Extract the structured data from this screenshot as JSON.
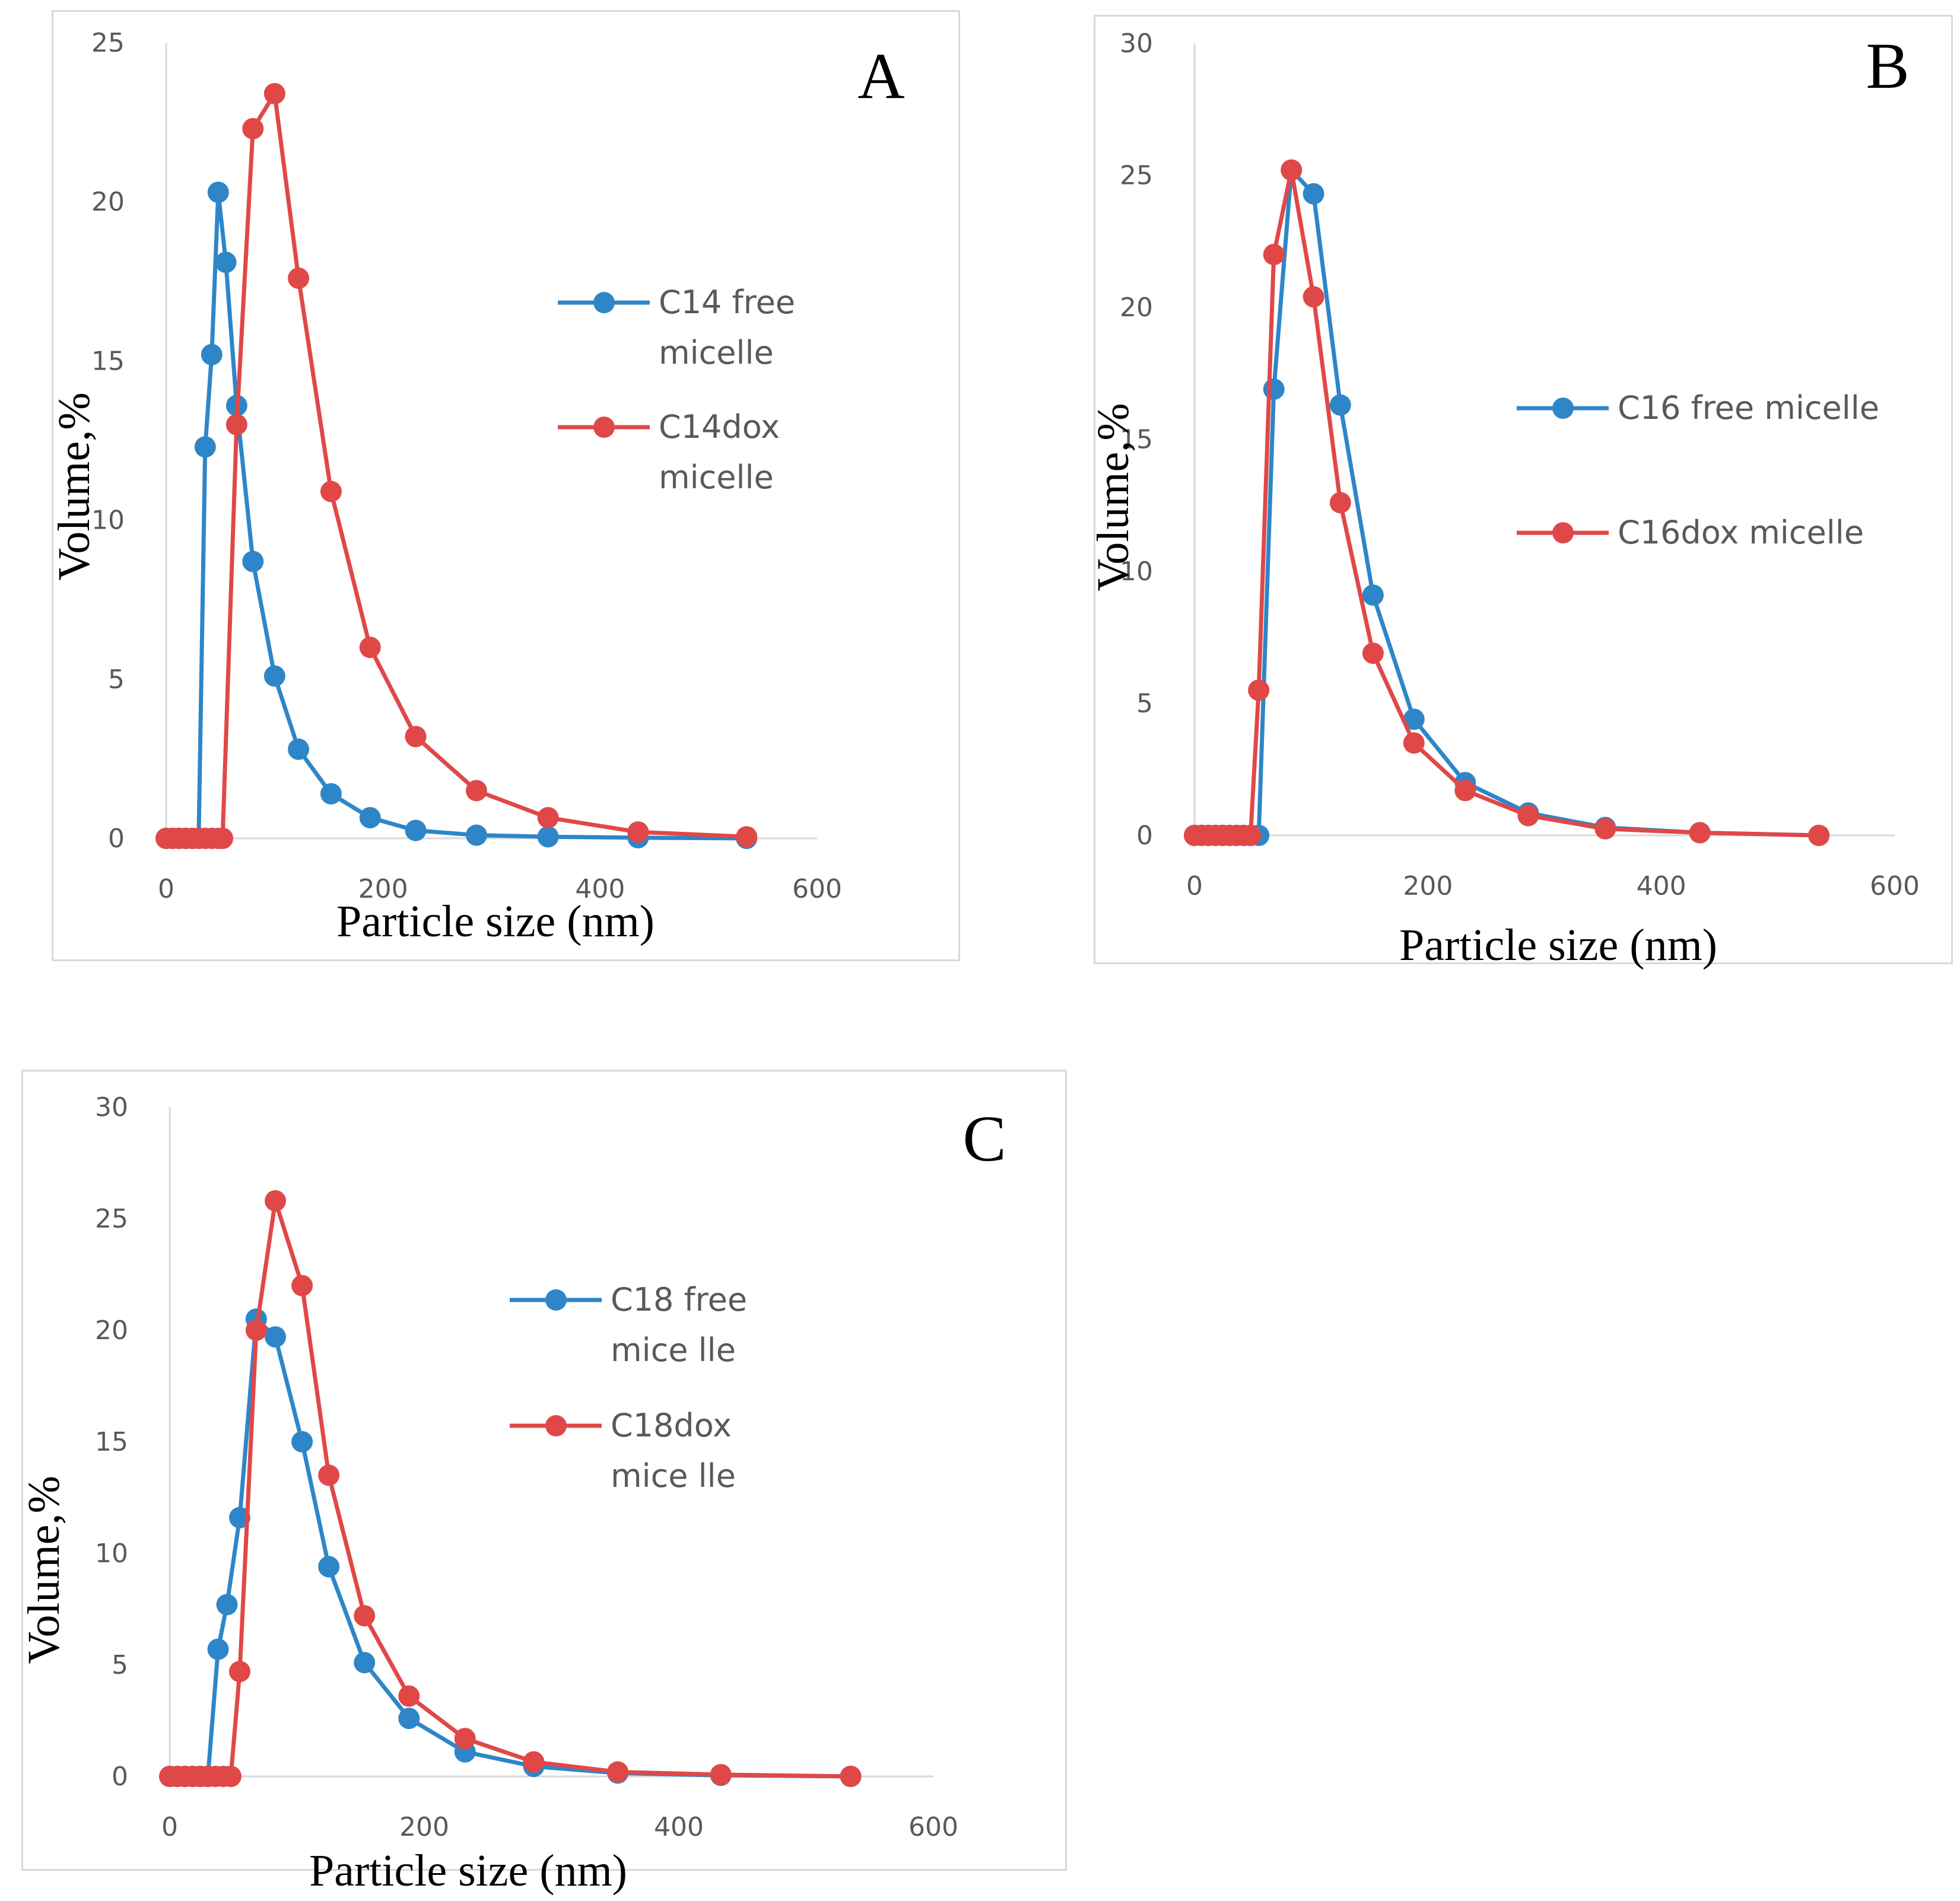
{
  "colors": {
    "series_a": "#2e86c8",
    "series_b": "#e04848",
    "axis": "#d9d9d9",
    "tick_text": "#595959"
  },
  "chart_data": [
    {
      "type": "line",
      "panel_label": "A",
      "xlabel": "Particle size (nm)",
      "ylabel": "Volume,%",
      "xlim": [
        0,
        600
      ],
      "ylim": [
        0,
        25
      ],
      "xticks": [
        "0",
        "200",
        "400",
        "600"
      ],
      "yticks": [
        "0",
        "5",
        "10",
        "15",
        "20",
        "25"
      ],
      "legend_position": "right-center",
      "grid": false,
      "series": [
        {
          "legend_lines": [
            "C14 free",
            "micelle"
          ],
          "color_key": "series_a",
          "x": [
            0,
            6,
            12,
            18,
            24,
            30,
            36,
            42,
            48,
            55,
            65,
            80,
            100,
            122,
            152,
            188,
            230,
            286,
            352,
            435,
            535
          ],
          "y": [
            0,
            0,
            0,
            0,
            0,
            0,
            12.3,
            15.2,
            20.3,
            18.1,
            13.6,
            8.7,
            5.1,
            2.8,
            1.4,
            0.65,
            0.25,
            0.1,
            0.05,
            0.02,
            0
          ]
        },
        {
          "legend_lines": [
            "C14dox",
            "micelle"
          ],
          "color_key": "series_b",
          "x": [
            0,
            6,
            12,
            18,
            24,
            30,
            36,
            42,
            48,
            52,
            65,
            80,
            100,
            122,
            152,
            188,
            230,
            286,
            352,
            435,
            535
          ],
          "y": [
            0,
            0,
            0,
            0,
            0,
            0,
            0,
            0,
            0,
            0,
            13.0,
            22.3,
            23.4,
            17.6,
            10.9,
            6.0,
            3.2,
            1.5,
            0.65,
            0.2,
            0.05
          ]
        }
      ]
    },
    {
      "type": "line",
      "panel_label": "B",
      "xlabel": "Particle size (nm)",
      "ylabel": "Volume,%",
      "xlim": [
        0,
        600
      ],
      "ylim": [
        0,
        30
      ],
      "xticks": [
        "0",
        "200",
        "400",
        "600"
      ],
      "yticks": [
        "0",
        "5",
        "10",
        "15",
        "20",
        "25",
        "30"
      ],
      "legend_position": "right-center",
      "grid": false,
      "series": [
        {
          "legend_lines": [
            "C16 free micelle"
          ],
          "color_key": "series_a",
          "x": [
            0,
            6,
            12,
            18,
            24,
            30,
            36,
            42,
            48,
            55,
            68,
            83,
            102,
            125,
            153,
            188,
            232,
            286,
            352,
            433,
            535
          ],
          "y": [
            0,
            0,
            0,
            0,
            0,
            0,
            0,
            0,
            0,
            0,
            16.9,
            25.2,
            24.3,
            16.3,
            9.1,
            4.4,
            2.0,
            0.85,
            0.3,
            0.1,
            0
          ]
        },
        {
          "legend_lines": [
            "C16dox micelle"
          ],
          "color_key": "series_b",
          "x": [
            0,
            6,
            12,
            18,
            24,
            30,
            36,
            42,
            48,
            55,
            68,
            83,
            102,
            125,
            153,
            188,
            232,
            286,
            352,
            433,
            535
          ],
          "y": [
            0,
            0,
            0,
            0,
            0,
            0,
            0,
            0,
            0,
            5.5,
            22.0,
            25.2,
            20.4,
            12.6,
            6.9,
            3.5,
            1.7,
            0.75,
            0.25,
            0.1,
            0
          ]
        }
      ]
    },
    {
      "type": "line",
      "panel_label": "C",
      "xlabel": "Particle size (nm)",
      "ylabel": "Volume,%",
      "xlim": [
        0,
        600
      ],
      "ylim": [
        0,
        30
      ],
      "xticks": [
        "0",
        "200",
        "400",
        "600"
      ],
      "yticks": [
        "0",
        "5",
        "10",
        "15",
        "20",
        "25",
        "30"
      ],
      "legend_position": "right-center",
      "grid": false,
      "series": [
        {
          "legend_lines": [
            "C18 free",
            "mice lle"
          ],
          "color_key": "series_a",
          "x": [
            0,
            6,
            12,
            18,
            24,
            30,
            38,
            45,
            55,
            68,
            83,
            104,
            125,
            153,
            188,
            232,
            286,
            352,
            433,
            535
          ],
          "y": [
            0,
            0,
            0,
            0,
            0,
            0,
            5.7,
            7.7,
            11.6,
            20.5,
            19.7,
            15.0,
            9.4,
            5.1,
            2.6,
            1.1,
            0.45,
            0.15,
            0.05,
            0
          ]
        },
        {
          "legend_lines": [
            "C18dox",
            "mice lle"
          ],
          "color_key": "series_b",
          "x": [
            0,
            6,
            12,
            18,
            24,
            30,
            36,
            42,
            48,
            55,
            68,
            83,
            104,
            125,
            153,
            188,
            232,
            286,
            352,
            433,
            535
          ],
          "y": [
            0,
            0,
            0,
            0,
            0,
            0,
            0,
            0,
            0,
            4.7,
            20.0,
            25.8,
            22.0,
            13.5,
            7.2,
            3.6,
            1.7,
            0.65,
            0.2,
            0.08,
            0
          ]
        }
      ]
    }
  ]
}
